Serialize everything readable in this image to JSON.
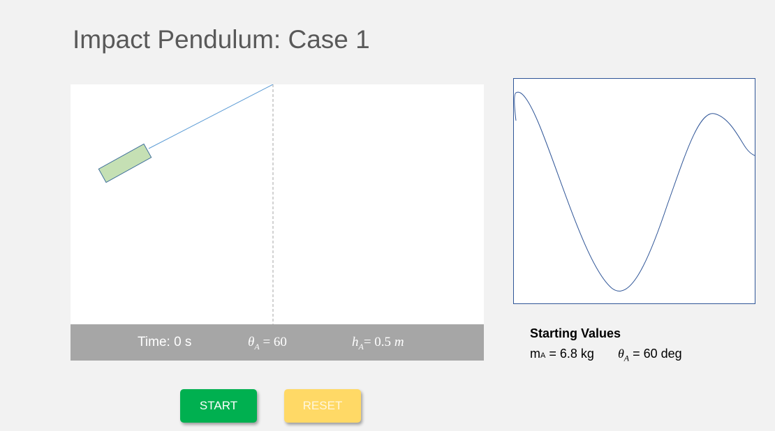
{
  "page": {
    "title": "Impact Pendulum: Case 1"
  },
  "simulation": {
    "pendulum_angle_deg": 60,
    "colors": {
      "rod": "#5b9bd5",
      "bob_fill": "#c5e0b4",
      "bob_stroke": "#41719c",
      "centerline": "#a6a6a6"
    }
  },
  "status": {
    "time_label": "Time:",
    "time_value": "0 s",
    "theta_symbol": "θ",
    "theta_sub": "A",
    "theta_eq": " = 60",
    "h_symbol": "h",
    "h_sub": "A",
    "h_eq": "= 0.5 ",
    "h_unit": "m"
  },
  "plot": {
    "line_color": "#2f5597"
  },
  "starting_values": {
    "heading": "Starting Values",
    "mass_symbol": "m",
    "mass_sub": "A",
    "mass_text": " = 6.8 kg",
    "theta_symbol": "θ",
    "theta_sub": "A",
    "theta_text": " = 60 deg"
  },
  "buttons": {
    "start_label": "START",
    "reset_label": "RESET",
    "start_color": "#00b050",
    "reset_color": "#ffd966"
  }
}
